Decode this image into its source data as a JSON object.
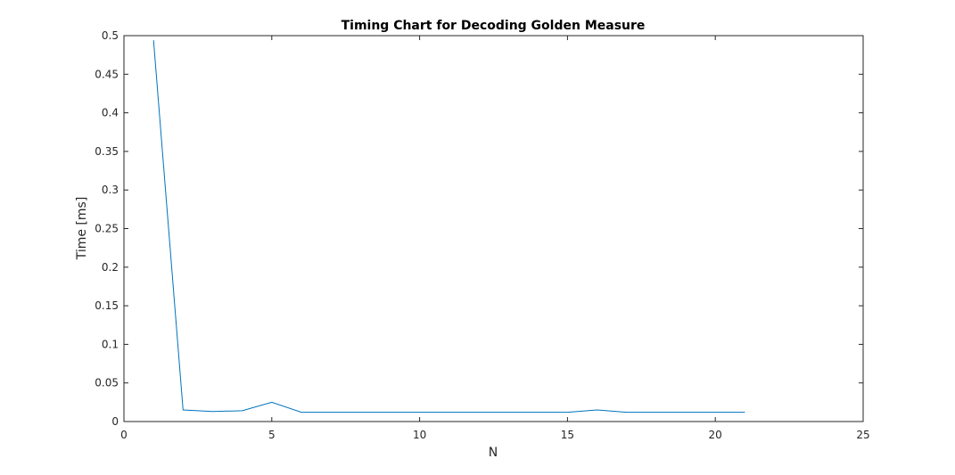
{
  "chart_data": {
    "type": "line",
    "title": "Timing Chart for Decoding Golden Measure",
    "xlabel": "N",
    "ylabel": "Time [ms]",
    "xlim": [
      0,
      25
    ],
    "ylim": [
      0,
      0.5
    ],
    "xticks": [
      0,
      5,
      10,
      15,
      20,
      25
    ],
    "yticks": [
      0,
      0.05,
      0.1,
      0.15,
      0.2,
      0.25,
      0.3,
      0.35,
      0.4,
      0.45,
      0.5
    ],
    "grid": false,
    "box": true,
    "series": [
      {
        "color": "#0072BD",
        "x": [
          1,
          2,
          3,
          4,
          5,
          6,
          7,
          8,
          9,
          10,
          11,
          12,
          13,
          14,
          15,
          16,
          17,
          18,
          19,
          20,
          21
        ],
        "y": [
          0.494,
          0.015,
          0.013,
          0.014,
          0.025,
          0.012,
          0.012,
          0.012,
          0.012,
          0.012,
          0.012,
          0.012,
          0.012,
          0.012,
          0.012,
          0.015,
          0.012,
          0.012,
          0.012,
          0.012,
          0.012
        ]
      }
    ]
  }
}
